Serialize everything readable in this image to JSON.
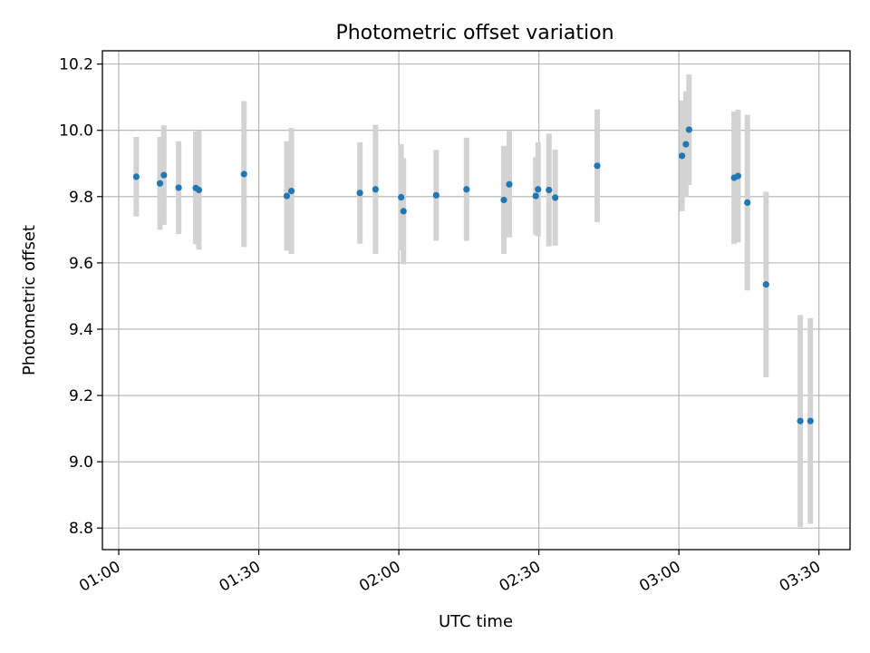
{
  "chart_data": {
    "type": "scatter",
    "title": "Photometric offset variation",
    "xlabel": "UTC time",
    "ylabel": "Photometric offset",
    "grid": true,
    "x_axis": {
      "type": "time",
      "range": [
        "00:56:30",
        "03:36:40"
      ],
      "ticks": [
        "01:00",
        "01:30",
        "02:00",
        "02:30",
        "03:00",
        "03:30"
      ]
    },
    "y_axis": {
      "range": [
        8.735,
        10.24
      ],
      "ticks": [
        "8.8",
        "9.0",
        "9.2",
        "9.4",
        "9.6",
        "9.8",
        "10.0",
        "10.2"
      ]
    },
    "colors": {
      "points": "#1f77b4",
      "errorbars": "#d3d3d3",
      "grid": "#b0b0b0"
    },
    "points": [
      {
        "time": "01:03:45",
        "y": 9.86,
        "yerr": 0.12
      },
      {
        "time": "01:08:50",
        "y": 9.84,
        "yerr": 0.14
      },
      {
        "time": "01:09:40",
        "y": 9.865,
        "yerr": 0.15
      },
      {
        "time": "01:12:50",
        "y": 9.827,
        "yerr": 0.14
      },
      {
        "time": "01:16:30",
        "y": 9.826,
        "yerr": 0.17
      },
      {
        "time": "01:17:10",
        "y": 9.82,
        "yerr": 0.18
      },
      {
        "time": "01:26:50",
        "y": 9.868,
        "yerr": 0.22
      },
      {
        "time": "01:36:00",
        "y": 9.802,
        "yerr": 0.165
      },
      {
        "time": "01:37:00",
        "y": 9.817,
        "yerr": 0.19
      },
      {
        "time": "01:51:40",
        "y": 9.811,
        "yerr": 0.153
      },
      {
        "time": "01:55:00",
        "y": 9.822,
        "yerr": 0.195
      },
      {
        "time": "02:00:30",
        "y": 9.798,
        "yerr": 0.16
      },
      {
        "time": "02:01:00",
        "y": 9.756,
        "yerr": 0.16
      },
      {
        "time": "02:08:00",
        "y": 9.804,
        "yerr": 0.137
      },
      {
        "time": "02:14:30",
        "y": 9.822,
        "yerr": 0.156
      },
      {
        "time": "02:22:30",
        "y": 9.79,
        "yerr": 0.163
      },
      {
        "time": "02:23:40",
        "y": 9.837,
        "yerr": 0.16
      },
      {
        "time": "02:29:20",
        "y": 9.802,
        "yerr": 0.117
      },
      {
        "time": "02:29:50",
        "y": 9.822,
        "yerr": 0.142
      },
      {
        "time": "02:32:10",
        "y": 9.82,
        "yerr": 0.17
      },
      {
        "time": "02:33:30",
        "y": 9.797,
        "yerr": 0.145
      },
      {
        "time": "02:42:30",
        "y": 9.893,
        "yerr": 0.17
      },
      {
        "time": "03:00:40",
        "y": 9.923,
        "yerr": 0.167
      },
      {
        "time": "03:01:30",
        "y": 9.958,
        "yerr": 0.16
      },
      {
        "time": "03:02:10",
        "y": 10.002,
        "yerr": 0.167
      },
      {
        "time": "03:11:50",
        "y": 9.857,
        "yerr": 0.2
      },
      {
        "time": "03:12:40",
        "y": 9.862,
        "yerr": 0.2
      },
      {
        "time": "03:14:40",
        "y": 9.782,
        "yerr": 0.265
      },
      {
        "time": "03:18:40",
        "y": 9.535,
        "yerr": 0.28
      },
      {
        "time": "03:26:00",
        "y": 9.123,
        "yerr": 0.32
      },
      {
        "time": "03:28:10",
        "y": 9.123,
        "yerr": 0.31
      }
    ]
  }
}
